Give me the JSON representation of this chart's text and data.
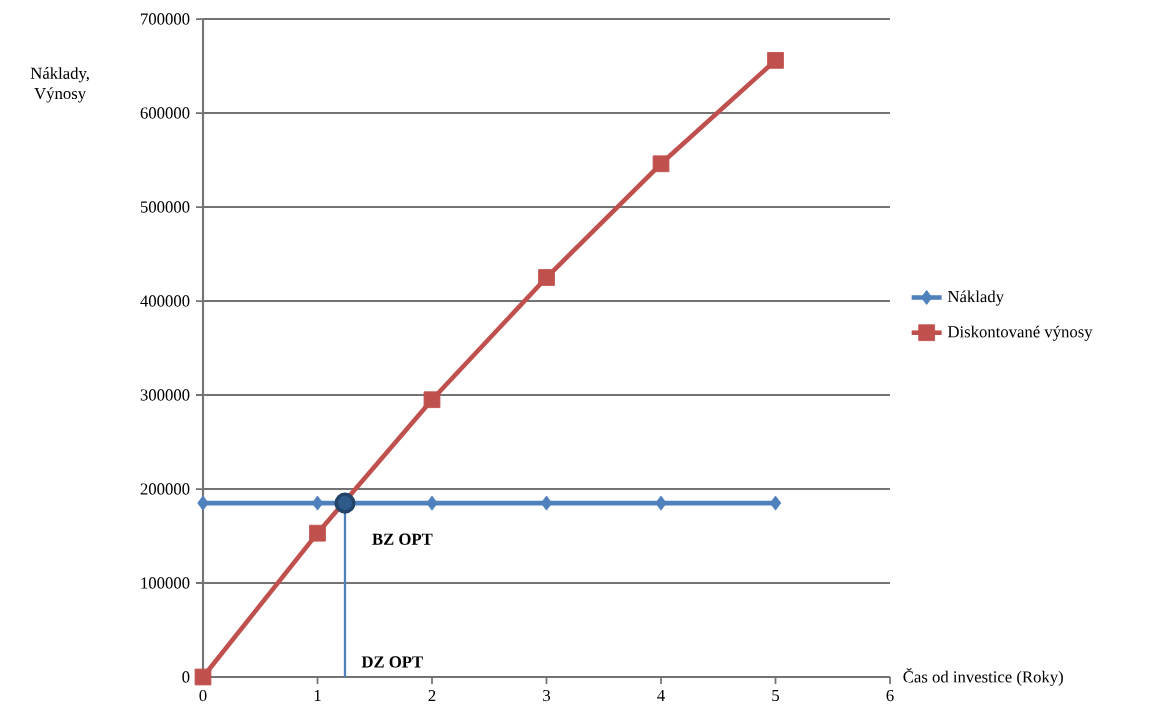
{
  "chart_data": {
    "type": "line",
    "xlabel": "Čas od investice (Roky)",
    "ylabel": "Náklady, Výnosy",
    "x": [
      0,
      1,
      2,
      3,
      4,
      5
    ],
    "series": [
      {
        "name": "Náklady",
        "color": "#4f81bd",
        "marker": "diamond",
        "values": [
          185000,
          185000,
          185000,
          185000,
          185000,
          185000
        ]
      },
      {
        "name": "Diskontované výnosy",
        "color": "#c0504d",
        "marker": "square",
        "values": [
          0,
          153000,
          295000,
          425000,
          546000,
          656000
        ]
      },
      {
        "type": "scatter",
        "color": "#2f5a8c",
        "marker": "circle",
        "x": [
          1.24
        ],
        "values": [
          185000
        ]
      }
    ],
    "xlim": [
      0,
      6
    ],
    "xticks": [
      0,
      1,
      2,
      3,
      4,
      5,
      6
    ],
    "ylim": [
      0,
      700000
    ],
    "yticks": [
      0,
      100000,
      200000,
      300000,
      400000,
      500000,
      600000,
      700000
    ],
    "grid": "y",
    "legend": "right",
    "ref_lines": [
      {
        "axis": "x",
        "value": 1.24,
        "label": "DZ OPT",
        "color": "#4f81bd"
      }
    ],
    "annotations": [
      {
        "text": "BZ OPT",
        "x": 1.24,
        "y": 185000
      }
    ]
  }
}
